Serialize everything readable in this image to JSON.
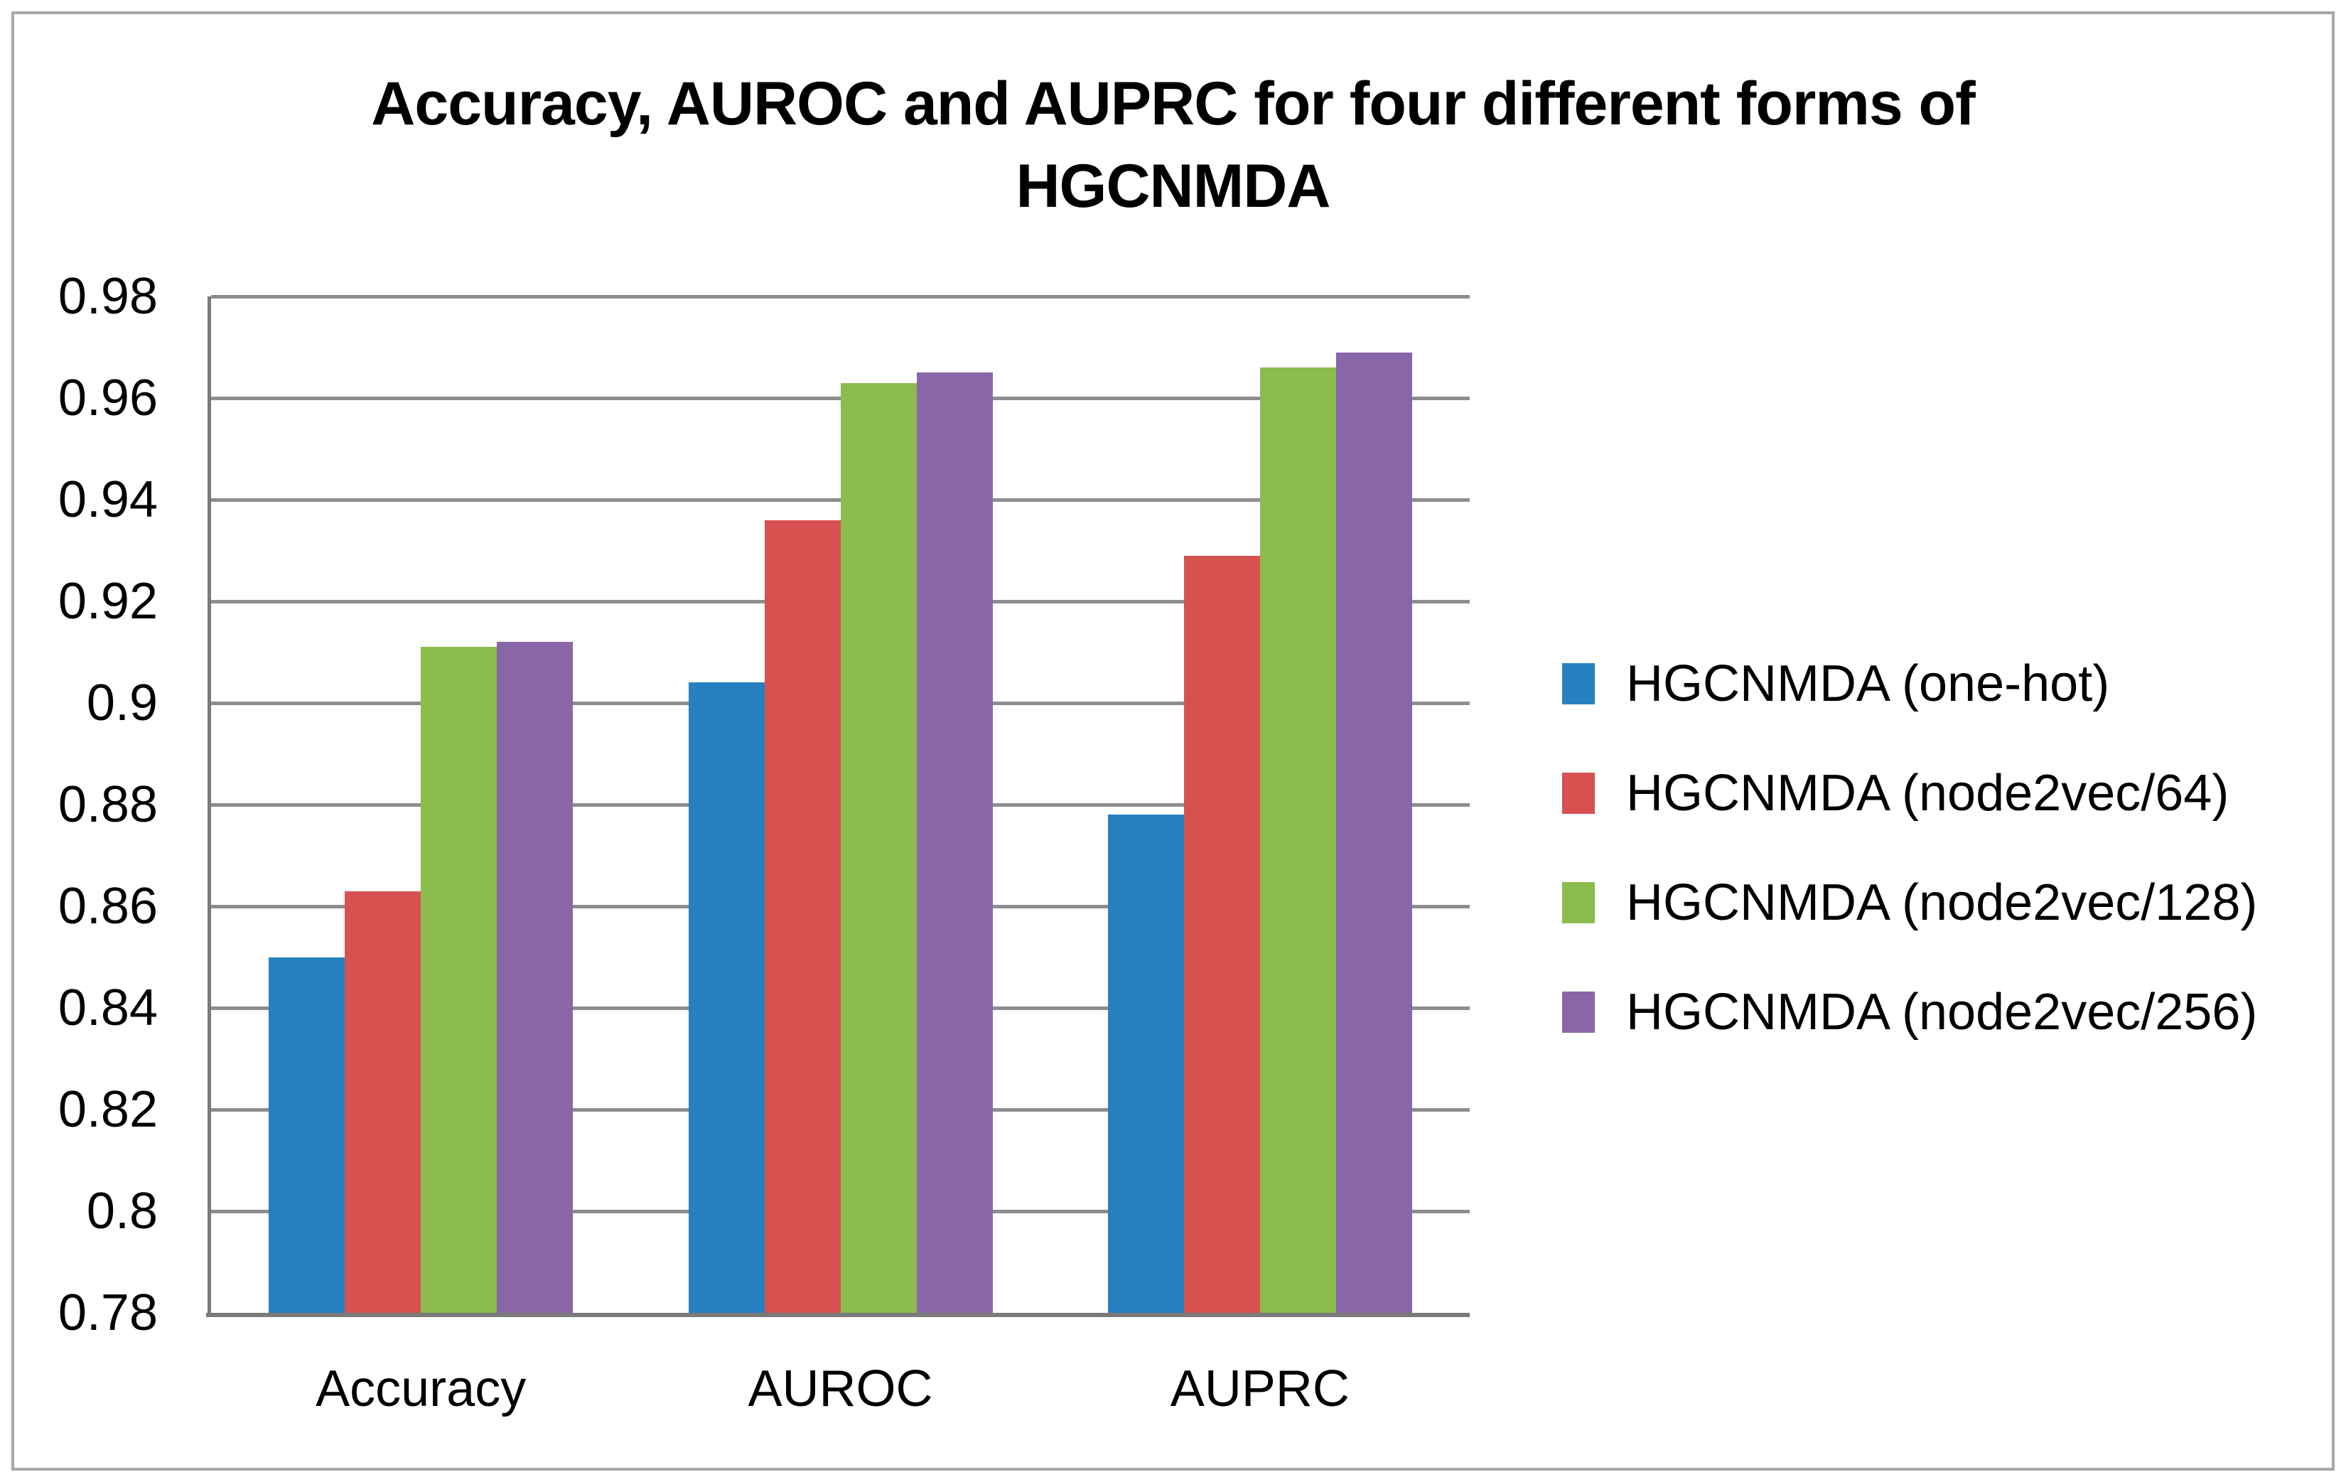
{
  "figure": {
    "title_line1": "Accuracy, AUROC and AUPRC for four different forms of",
    "title_line2": "HGCNMDA"
  },
  "chart_data": {
    "type": "bar",
    "title": "Accuracy, AUROC and AUPRC for four different forms of HGCNMDA",
    "categories": [
      "Accuracy",
      "AUROC",
      "AUPRC"
    ],
    "series": [
      {
        "name": "HGCNMDA (one-hot)",
        "color": "#2781c1",
        "values": [
          0.85,
          0.904,
          0.878
        ]
      },
      {
        "name": "HGCNMDA (node2vec/64)",
        "color": "#d85151",
        "values": [
          0.863,
          0.936,
          0.929
        ]
      },
      {
        "name": "HGCNMDA (node2vec/128)",
        "color": "#8cbb4e",
        "values": [
          0.911,
          0.963,
          0.966
        ]
      },
      {
        "name": "HGCNMDA (node2vec/256)",
        "color": "#8966a7",
        "values": [
          0.912,
          0.965,
          0.969
        ]
      }
    ],
    "y_axis": {
      "min": 0.78,
      "max": 0.98,
      "step": 0.02,
      "tick_labels": [
        "0.98",
        "0.96",
        "0.94",
        "0.92",
        "0.9",
        "0.88",
        "0.86",
        "0.84",
        "0.82",
        "0.8",
        "0.78"
      ]
    },
    "grid": true,
    "legend_position": "right",
    "style_colors": {
      "gridline": "#8d8d8d",
      "axis_line": "#7a7a7a",
      "figure_border": "#a8a8a8",
      "text": "#000000"
    }
  }
}
